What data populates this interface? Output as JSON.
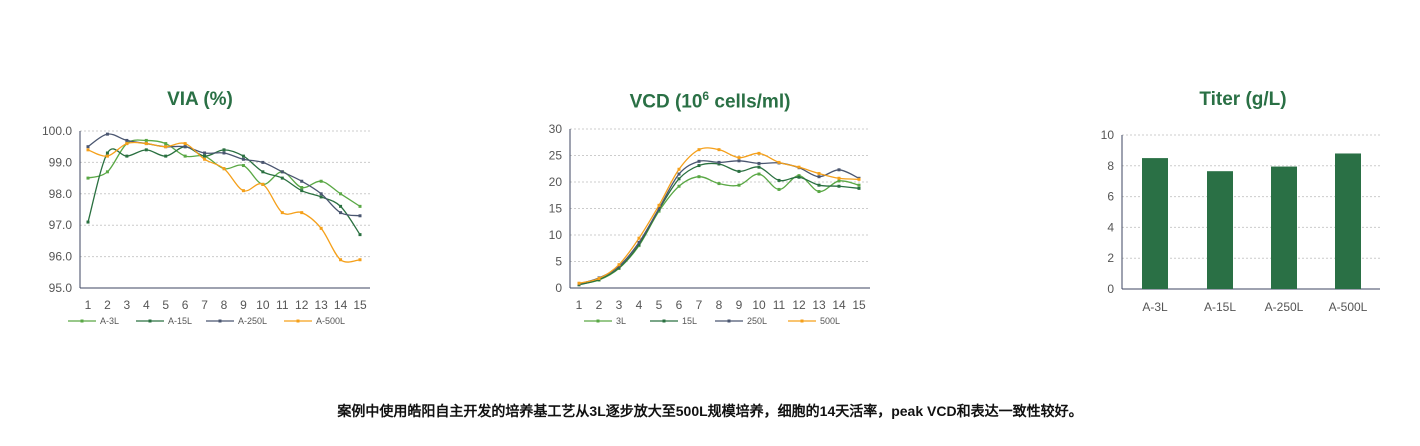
{
  "chart_data": [
    {
      "type": "line",
      "title": "VIA (%)",
      "x": [
        1,
        2,
        3,
        4,
        5,
        6,
        7,
        8,
        9,
        10,
        11,
        12,
        13,
        14,
        15
      ],
      "ylim": [
        95,
        100
      ],
      "yticks": [
        "95.0",
        "96.0",
        "97.0",
        "98.0",
        "99.0",
        "100.0"
      ],
      "grid": true,
      "legend": "bottom",
      "series": [
        {
          "name": "A-3L",
          "color": "#5aa845",
          "values": [
            98.5,
            98.7,
            99.6,
            99.7,
            99.6,
            99.2,
            99.2,
            98.8,
            98.9,
            98.3,
            98.7,
            98.2,
            98.4,
            98.0,
            97.6
          ]
        },
        {
          "name": "A-15L",
          "color": "#2a7040",
          "values": [
            97.1,
            99.3,
            99.2,
            99.4,
            99.2,
            99.5,
            99.2,
            99.4,
            99.2,
            98.7,
            98.5,
            98.1,
            97.9,
            97.6,
            96.7
          ]
        },
        {
          "name": "A-250L",
          "color": "#4a5670",
          "values": [
            99.5,
            99.9,
            99.7,
            99.6,
            99.5,
            99.5,
            99.3,
            99.3,
            99.1,
            99.0,
            98.7,
            98.4,
            98.0,
            97.4,
            97.3
          ]
        },
        {
          "name": "A-500L",
          "color": "#f5a01a",
          "values": [
            99.4,
            99.2,
            99.6,
            99.6,
            99.5,
            99.6,
            99.1,
            98.8,
            98.1,
            98.3,
            97.4,
            97.4,
            96.9,
            95.9,
            95.9
          ]
        }
      ]
    },
    {
      "type": "line",
      "title": "VCD (10",
      "title_sup": "6",
      "title_end": " cells/ml)",
      "x": [
        1,
        2,
        3,
        4,
        5,
        6,
        7,
        8,
        9,
        10,
        11,
        12,
        13,
        14,
        15
      ],
      "ylim": [
        0,
        30
      ],
      "yticks": [
        "0",
        "5",
        "10",
        "15",
        "20",
        "25",
        "30"
      ],
      "grid": true,
      "legend": "bottom",
      "series": [
        {
          "name": "3L",
          "color": "#5aa845",
          "values": [
            0.7,
            1.5,
            3.7,
            8,
            14.5,
            19.2,
            21,
            19.7,
            19.4,
            21.5,
            18.6,
            21.2,
            18.2,
            20.2,
            19.4
          ]
        },
        {
          "name": "15L",
          "color": "#2a7040",
          "values": [
            0.6,
            1.6,
            3.8,
            8.2,
            14.8,
            20.6,
            23.1,
            23.4,
            22,
            22.8,
            20.3,
            20.9,
            19.4,
            19.2,
            18.8
          ]
        },
        {
          "name": "250L",
          "color": "#4a5670",
          "values": [
            0.8,
            1.9,
            4.1,
            8.6,
            15,
            21.5,
            23.9,
            23.7,
            24,
            23.5,
            23.6,
            22.7,
            21,
            22.3,
            20.7
          ]
        },
        {
          "name": "500L",
          "color": "#f5a01a",
          "values": [
            0.9,
            1.8,
            4.4,
            9.4,
            15.6,
            22.4,
            26.1,
            26.1,
            24.6,
            25.4,
            23.7,
            22.8,
            21.6,
            20.7,
            20.5
          ]
        }
      ]
    },
    {
      "type": "bar",
      "title": "Titer (g/L)",
      "categories": [
        "A-3L",
        "A-15L",
        "A-250L",
        "A-500L"
      ],
      "values": [
        8.5,
        7.65,
        7.95,
        8.8
      ],
      "color": "#2a7045",
      "ylim": [
        0,
        10
      ],
      "yticks": [
        "0",
        "2",
        "4",
        "6",
        "8",
        "10"
      ],
      "grid": true
    }
  ],
  "caption": "案例中使用皓阳自主开发的培养基工艺从3L逐步放大至500L规模培养，细胞的14天活率，peak VCD和表达一致性较好。"
}
